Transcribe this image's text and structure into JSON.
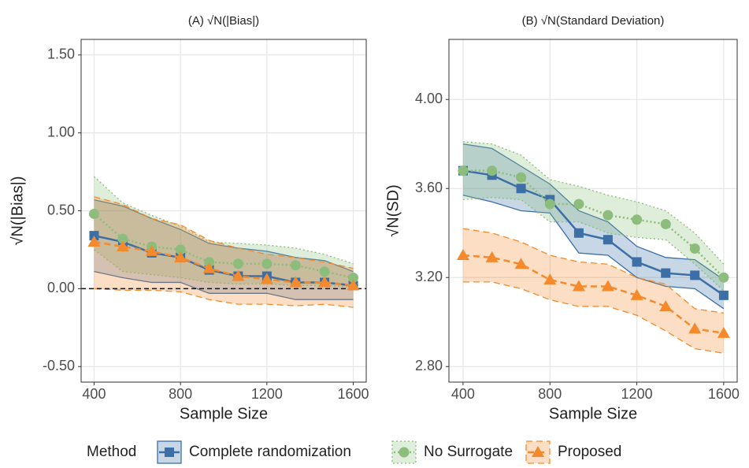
{
  "chart_data": [
    {
      "type": "line",
      "title": "(A) √N(|Bias|)",
      "x_label": "Sample Size",
      "y_label": "√N(|Bias|)",
      "x": [
        400,
        533,
        667,
        800,
        933,
        1067,
        1200,
        1333,
        1467,
        1600
      ],
      "xlim": [
        340,
        1660
      ],
      "xticks": [
        400,
        800,
        1200,
        1600
      ],
      "ylim": [
        -0.6,
        1.6
      ],
      "yticks": [
        {
          "value": -0.5,
          "label": "-0.50"
        },
        {
          "value": 0,
          "label": "0.00"
        },
        {
          "value": 0.5,
          "label": "0.50"
        },
        {
          "value": 1,
          "label": "1.00"
        },
        {
          "value": 1.5,
          "label": "1.50"
        }
      ],
      "hline": 0,
      "grid": true,
      "series": [
        {
          "name": "Complete randomization",
          "color": "#3b6fa6",
          "linestyle": "solid",
          "marker": "square",
          "values": [
            0.34,
            0.3,
            0.23,
            0.2,
            0.12,
            0.08,
            0.08,
            0.04,
            0.04,
            0.02
          ],
          "lower": [
            0.11,
            0.07,
            0.04,
            0.04,
            -0.03,
            -0.03,
            -0.03,
            -0.07,
            -0.07,
            -0.07
          ],
          "upper": [
            0.57,
            0.53,
            0.45,
            0.38,
            0.29,
            0.26,
            0.24,
            0.2,
            0.18,
            0.11
          ]
        },
        {
          "name": "No Surrogate",
          "color": "#8dbd7c",
          "linestyle": "dotted",
          "marker": "circle",
          "values": [
            0.48,
            0.32,
            0.27,
            0.25,
            0.17,
            0.16,
            0.16,
            0.15,
            0.11,
            0.07
          ],
          "lower": [
            0.25,
            0.11,
            0.09,
            0.07,
            0.04,
            0.03,
            0.03,
            0.02,
            0.02,
            0.01
          ],
          "upper": [
            0.72,
            0.55,
            0.47,
            0.4,
            0.3,
            0.29,
            0.28,
            0.26,
            0.22,
            0.16
          ]
        },
        {
          "name": "Proposed",
          "color": "#f58a2c",
          "linestyle": "dashed",
          "marker": "triangle",
          "values": [
            0.3,
            0.27,
            0.24,
            0.2,
            0.13,
            0.08,
            0.06,
            0.04,
            0.04,
            0.02
          ],
          "lower": [
            0.0,
            -0.01,
            -0.01,
            -0.02,
            -0.07,
            -0.1,
            -0.1,
            -0.11,
            -0.1,
            -0.12
          ],
          "upper": [
            0.59,
            0.54,
            0.45,
            0.41,
            0.31,
            0.26,
            0.22,
            0.2,
            0.17,
            0.13
          ]
        }
      ]
    },
    {
      "type": "line",
      "title": "(B) √N(Standard Deviation)",
      "x_label": "Sample Size",
      "y_label": "√N(SD)",
      "x": [
        400,
        533,
        667,
        800,
        933,
        1067,
        1200,
        1333,
        1467,
        1600
      ],
      "xlim": [
        335,
        1662
      ],
      "xticks": [
        400,
        800,
        1200,
        1600
      ],
      "ylim": [
        2.73,
        4.27
      ],
      "yticks": [
        {
          "value": 2.8,
          "label": "2.80"
        },
        {
          "value": 3.2,
          "label": "3.20"
        },
        {
          "value": 3.6,
          "label": "3.60"
        },
        {
          "value": 4,
          "label": "4.00"
        }
      ],
      "grid": true,
      "series": [
        {
          "color": "#3b6fa6",
          "linestyle": "solid",
          "marker": "square",
          "values": [
            3.68,
            3.66,
            3.6,
            3.55,
            3.4,
            3.37,
            3.27,
            3.22,
            3.21,
            3.12
          ],
          "lower": [
            3.57,
            3.54,
            3.5,
            3.49,
            3.31,
            3.3,
            3.2,
            3.16,
            3.15,
            3.06
          ],
          "upper": [
            3.8,
            3.78,
            3.7,
            3.62,
            3.5,
            3.45,
            3.34,
            3.29,
            3.28,
            3.19
          ]
        },
        {
          "color": "#8dbd7c",
          "linestyle": "dotted",
          "marker": "circle",
          "values": [
            3.68,
            3.68,
            3.65,
            3.53,
            3.53,
            3.48,
            3.46,
            3.44,
            3.33,
            3.2
          ],
          "lower": [
            3.55,
            3.56,
            3.55,
            3.45,
            3.45,
            3.4,
            3.38,
            3.37,
            3.26,
            3.14
          ],
          "upper": [
            3.81,
            3.8,
            3.75,
            3.64,
            3.61,
            3.57,
            3.54,
            3.5,
            3.4,
            3.26
          ]
        },
        {
          "color": "#f58a2c",
          "linestyle": "dashed",
          "marker": "triangle",
          "values": [
            3.3,
            3.29,
            3.26,
            3.19,
            3.16,
            3.16,
            3.12,
            3.07,
            2.97,
            2.95
          ],
          "lower": [
            3.18,
            3.18,
            3.15,
            3.1,
            3.07,
            3.07,
            3.03,
            2.96,
            2.88,
            2.86
          ],
          "upper": [
            3.42,
            3.4,
            3.36,
            3.3,
            3.27,
            3.26,
            3.2,
            3.17,
            3.06,
            3.04
          ]
        }
      ]
    }
  ],
  "legend": {
    "title": "Method"
  }
}
